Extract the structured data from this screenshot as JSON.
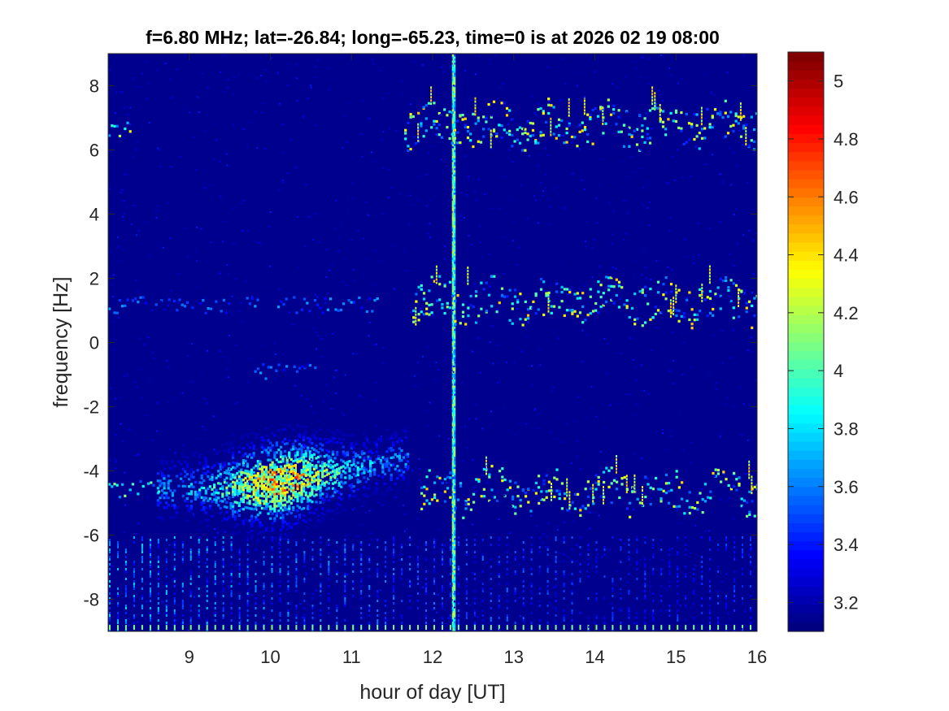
{
  "chart_data": {
    "type": "heatmap",
    "title": "f=6.80 MHz;  lat=-26.84; long=-65.23, time=0 is at 2026 02 19 08:00",
    "xlabel": "hour of day [UT]",
    "ylabel": "frequency [Hz]",
    "xlim": [
      8.0,
      16.0
    ],
    "ylim": [
      -9.0,
      9.0
    ],
    "x_ticks": [
      9,
      10,
      11,
      12,
      13,
      14,
      15,
      16
    ],
    "x_tick_labels": [
      "9",
      "10",
      "11",
      "12",
      "13",
      "14",
      "15",
      "16"
    ],
    "y_ticks": [
      8,
      6,
      4,
      2,
      0,
      -2,
      -4,
      -6,
      -8
    ],
    "y_tick_labels": [
      "8",
      "6",
      "4",
      "2",
      "0",
      "-2",
      "-4",
      "-6",
      "-8"
    ],
    "colorbar": {
      "colormap": "jet",
      "clim": [
        3.1,
        5.1
      ],
      "ticks": [
        5,
        4.8,
        4.6,
        4.4,
        4.2,
        4,
        3.8,
        3.6,
        3.4,
        3.2
      ],
      "tick_labels": [
        "5",
        "4.8",
        "4.6",
        "4.4",
        "4.2",
        "4",
        "3.8",
        "3.6",
        "3.4",
        "3.2"
      ]
    },
    "background_value": 3.15,
    "features": [
      {
        "kind": "vertical_band",
        "x": 12.25,
        "value": 4.1
      },
      {
        "kind": "scattered_trace",
        "x_range": [
          11.65,
          16.0
        ],
        "y": 6.8,
        "y_spread": 0.6,
        "value": 4.3
      },
      {
        "kind": "scattered_trace",
        "x_range": [
          11.75,
          16.0
        ],
        "y": 1.3,
        "y_spread": 0.6,
        "value": 4.3
      },
      {
        "kind": "scattered_trace",
        "x_range": [
          11.85,
          16.0
        ],
        "y": -4.6,
        "y_spread": 0.6,
        "value": 4.3
      },
      {
        "kind": "diffuse_blob",
        "x_range": [
          8.6,
          11.7
        ],
        "y": -4.2,
        "y_spread": 0.6,
        "value": 4.6
      },
      {
        "kind": "faint_trace",
        "x_range": [
          8.0,
          11.4
        ],
        "y": 1.2,
        "value": 3.6
      },
      {
        "kind": "faint_trace",
        "x_range": [
          8.0,
          8.3
        ],
        "y": 6.6,
        "value": 4.2
      },
      {
        "kind": "faint_trace",
        "x_range": [
          8.0,
          8.7
        ],
        "y": -4.6,
        "value": 4.0
      },
      {
        "kind": "faint_trace",
        "x_range": [
          9.8,
          10.6
        ],
        "y": -0.9,
        "value": 3.6
      },
      {
        "kind": "periodic_stripes",
        "x_range": [
          8.0,
          16.0
        ],
        "y_range": [
          -9.0,
          -6.0
        ],
        "value": 3.7
      }
    ]
  }
}
